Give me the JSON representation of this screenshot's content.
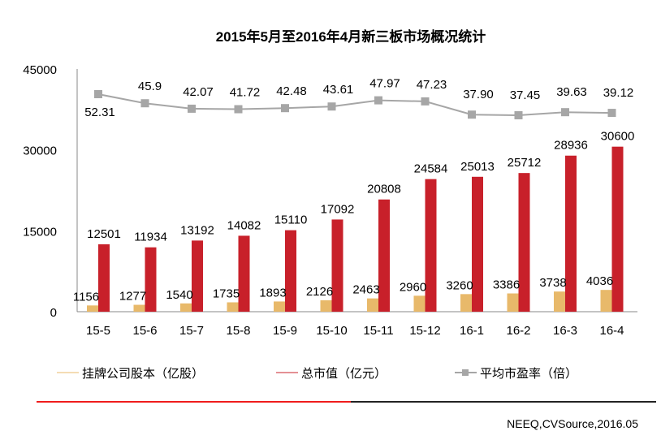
{
  "chart_data": {
    "type": "bar",
    "title": "2015年5月至2016年4月新三板市场概况统计",
    "categories": [
      "15-5",
      "15-6",
      "15-7",
      "15-8",
      "15-9",
      "15-10",
      "15-11",
      "15-12",
      "16-1",
      "16-2",
      "16-3",
      "16-4"
    ],
    "ylim": [
      0,
      45000
    ],
    "yticks": [
      "0",
      "15000",
      "30000",
      "45000"
    ],
    "series": [
      {
        "name": "挂牌公司股本（亿股）",
        "type": "bar",
        "color": "#E8B96A",
        "values": [
          1156,
          1277,
          1540,
          1735,
          1893,
          2126,
          2463,
          2960,
          3260,
          3386,
          3738,
          4036
        ]
      },
      {
        "name": "总市值（亿元）",
        "type": "bar",
        "color": "#C8202A",
        "values": [
          12501,
          11934,
          13192,
          14082,
          15110,
          17092,
          20808,
          24584,
          25013,
          25712,
          28936,
          30600
        ]
      },
      {
        "name": "平均市盈率（倍）",
        "type": "line",
        "color": "#A6A6A6",
        "values": [
          52.31,
          45.9,
          42.07,
          41.72,
          42.48,
          43.61,
          47.97,
          47.23,
          37.9,
          37.45,
          39.63,
          39.12
        ],
        "labels": [
          "52.31",
          "45.9",
          "42.07",
          "41.72",
          "42.48",
          "43.61",
          "47.97",
          "47.23",
          "37.90",
          "37.45",
          "39.63",
          "39.12"
        ]
      }
    ],
    "legend": "bottom"
  },
  "source": "NEEQ,CVSource,2016.05"
}
